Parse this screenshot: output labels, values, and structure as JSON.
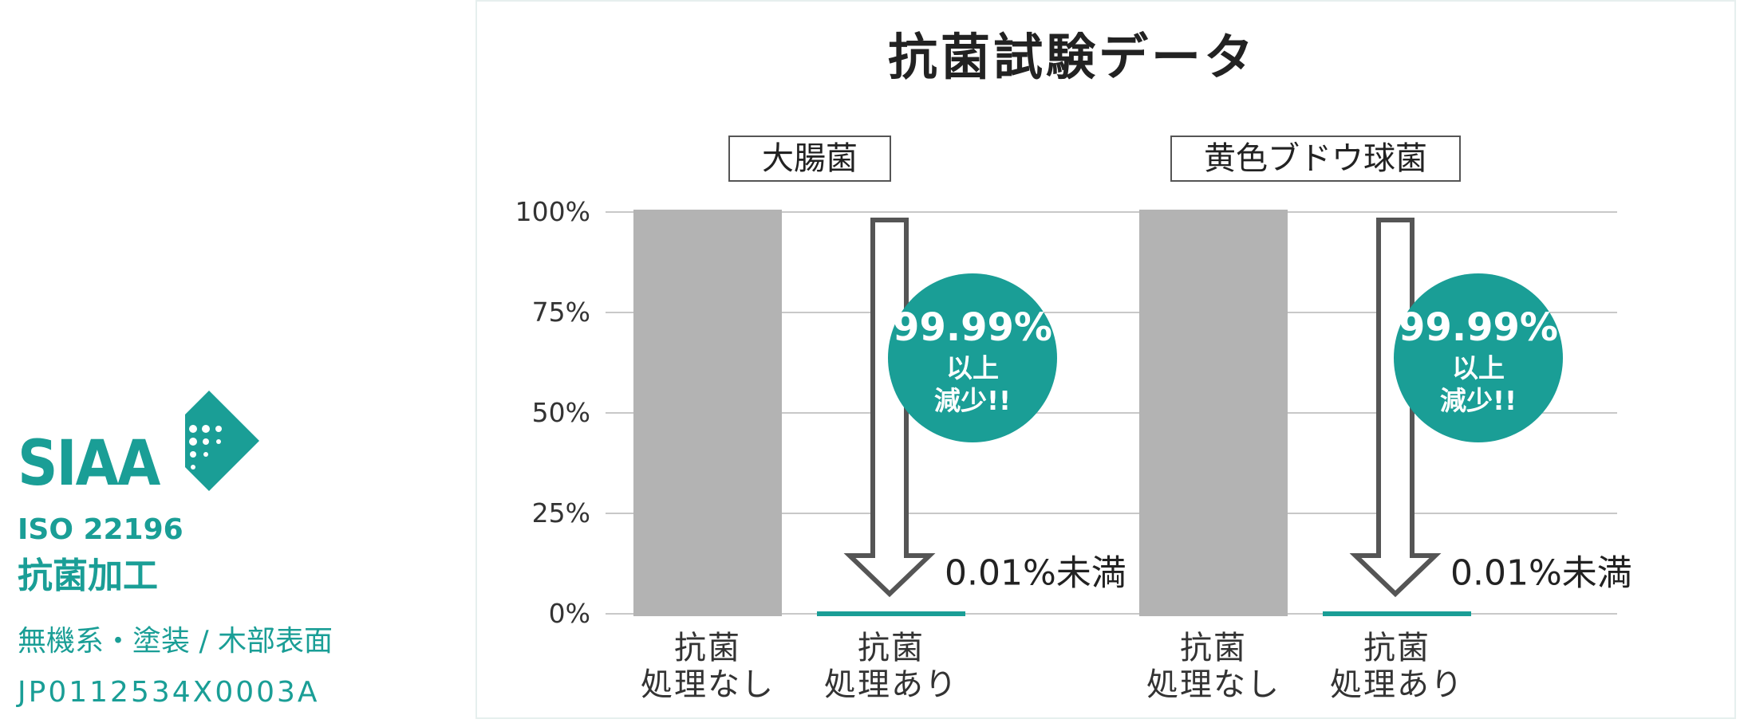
{
  "logo": {
    "mark": "SIAA",
    "standard": "ISO 22196",
    "treatment": "抗菌加工",
    "detail": "無機系・塗装 / 木部表面",
    "code": "JP0112534X0003A"
  },
  "chart_data": {
    "type": "bar",
    "title": "抗菌試験データ",
    "ylim": [
      0,
      100
    ],
    "yticks": [
      {
        "value": 0,
        "label": "0%"
      },
      {
        "value": 25,
        "label": "25%"
      },
      {
        "value": 50,
        "label": "50%"
      },
      {
        "value": 75,
        "label": "75%"
      },
      {
        "value": 100,
        "label": "100%"
      }
    ],
    "grid": true,
    "colors": [
      "#b3b3b3",
      "#1a9e96"
    ],
    "panels": [
      {
        "title": "大腸菌",
        "categories": [
          "抗菌\n処理なし",
          "抗菌\n処理あり"
        ],
        "values": [
          100,
          0.01
        ],
        "value_labels": [
          null,
          "0.01%未満"
        ],
        "annotation": "99.99%\n以上\n減少!!"
      },
      {
        "title": "黄色ブドウ球菌",
        "categories": [
          "抗菌\n処理なし",
          "抗菌\n処理あり"
        ],
        "values": [
          100,
          0.01
        ],
        "value_labels": [
          null,
          "0.01%未満"
        ],
        "annotation": "99.99%\n以上\n減少!!"
      }
    ]
  }
}
